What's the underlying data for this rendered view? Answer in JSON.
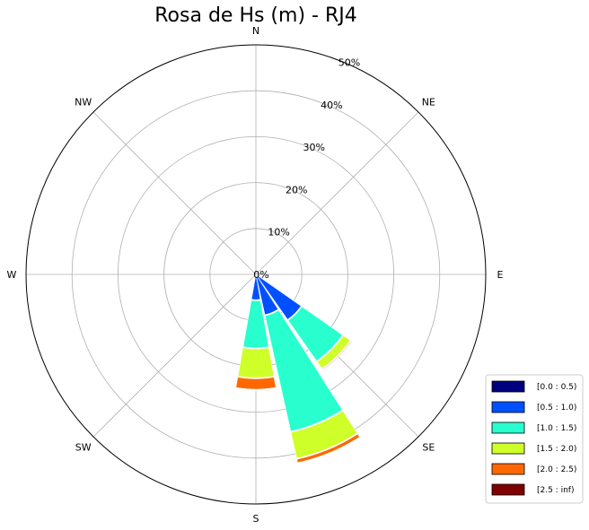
{
  "chart_data": {
    "type": "windrose",
    "title": "Rosa de Hs (m) - RJ4",
    "directions": [
      "N",
      "NE",
      "E",
      "SE",
      "S",
      "SW",
      "W",
      "NW"
    ],
    "radial_ticks": [
      "0%",
      "10%",
      "20%",
      "30%",
      "40%",
      "50%"
    ],
    "rmax": 50,
    "grid": true,
    "legend_position": "lower-right",
    "bins": [
      {
        "label": "[0.0 : 0.5)",
        "color": "#00007f"
      },
      {
        "label": "[0.5 : 1.0)",
        "color": "#0050ff"
      },
      {
        "label": "[1.0 : 1.5)",
        "color": "#29ffce"
      },
      {
        "label": "[1.5 : 2.0)",
        "color": "#ceff29"
      },
      {
        "label": "[2.0 : 2.5)",
        "color": "#ff6800"
      },
      {
        "label": "[2.5 : inf)",
        "color": "#7f0000"
      }
    ],
    "sectors": [
      {
        "direction_deg": 135,
        "cumulative": [
          0,
          12,
          23,
          25,
          25.4,
          25.4
        ]
      },
      {
        "direction_deg": 157.5,
        "cumulative": [
          0,
          9,
          35,
          41,
          42,
          42
        ]
      },
      {
        "direction_deg": 180,
        "cumulative": [
          0,
          5.5,
          16,
          22.5,
          25,
          25.3
        ]
      }
    ]
  }
}
